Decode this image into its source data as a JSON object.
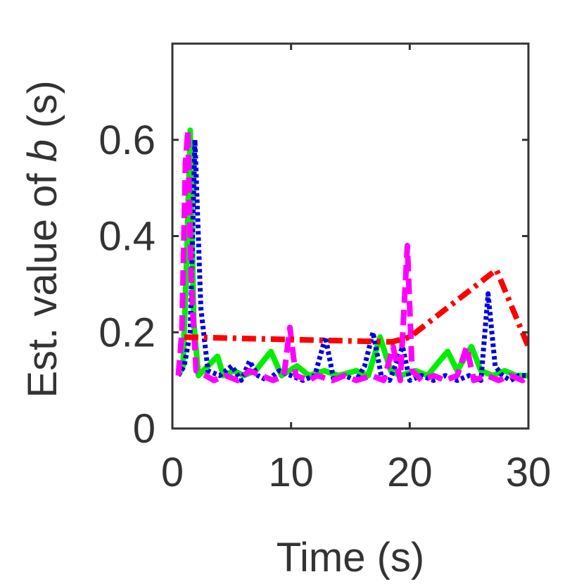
{
  "chart_data": {
    "type": "line",
    "xlabel": "Time (s)",
    "ylabel_prefix": "Est. value of ",
    "ylabel_var": "b",
    "ylabel_suffix": " (s)",
    "xlim": [
      0,
      30
    ],
    "ylim": [
      0,
      0.8
    ],
    "xticks": [
      0,
      10,
      20,
      30
    ],
    "yticks": [
      0,
      0.2,
      0.4,
      0.6
    ],
    "xtick_labels": [
      "0",
      "10",
      "20",
      "30"
    ],
    "ytick_labels": [
      "0",
      "0.2",
      "0.4",
      "0.6"
    ],
    "grid": false,
    "series": [
      {
        "color": "#00ee00",
        "style": "solid",
        "points": [
          [
            0.5,
            0.11
          ],
          [
            0.9,
            0.13
          ],
          [
            1.2,
            0.35
          ],
          [
            1.5,
            0.62
          ],
          [
            1.8,
            0.22
          ],
          [
            2.2,
            0.11
          ],
          [
            3.0,
            0.13
          ],
          [
            3.8,
            0.15
          ],
          [
            4.3,
            0.11
          ],
          [
            5.2,
            0.12
          ],
          [
            6.0,
            0.11
          ],
          [
            7.0,
            0.12
          ],
          [
            8.3,
            0.16
          ],
          [
            9.2,
            0.11
          ],
          [
            10.5,
            0.13
          ],
          [
            11.5,
            0.11
          ],
          [
            12.8,
            0.12
          ],
          [
            14.0,
            0.11
          ],
          [
            15.5,
            0.12
          ],
          [
            16.5,
            0.11
          ],
          [
            17.5,
            0.19
          ],
          [
            18.4,
            0.12
          ],
          [
            19.2,
            0.11
          ],
          [
            20.5,
            0.12
          ],
          [
            21.5,
            0.11
          ],
          [
            22.5,
            0.14
          ],
          [
            23.2,
            0.16
          ],
          [
            24.0,
            0.12
          ],
          [
            25.2,
            0.17
          ],
          [
            26.0,
            0.12
          ],
          [
            27.0,
            0.11
          ],
          [
            28.0,
            0.12
          ],
          [
            29.0,
            0.11
          ],
          [
            30.0,
            0.11
          ]
        ]
      },
      {
        "color": "#0000dd",
        "style": "dotted",
        "points": [
          [
            0.5,
            0.11
          ],
          [
            1.0,
            0.13
          ],
          [
            1.5,
            0.2
          ],
          [
            1.9,
            0.6
          ],
          [
            2.4,
            0.25
          ],
          [
            3.0,
            0.12
          ],
          [
            4.0,
            0.11
          ],
          [
            5.0,
            0.13
          ],
          [
            5.8,
            0.1
          ],
          [
            6.5,
            0.14
          ],
          [
            7.2,
            0.11
          ],
          [
            8.0,
            0.1
          ],
          [
            9.0,
            0.12
          ],
          [
            10.0,
            0.11
          ],
          [
            11.0,
            0.1
          ],
          [
            12.0,
            0.11
          ],
          [
            12.9,
            0.19
          ],
          [
            13.6,
            0.1
          ],
          [
            14.5,
            0.11
          ],
          [
            15.5,
            0.1
          ],
          [
            16.2,
            0.13
          ],
          [
            16.9,
            0.2
          ],
          [
            17.6,
            0.11
          ],
          [
            18.3,
            0.1
          ],
          [
            19.4,
            0.17
          ],
          [
            20.0,
            0.1
          ],
          [
            21.0,
            0.11
          ],
          [
            22.0,
            0.1
          ],
          [
            23.0,
            0.11
          ],
          [
            24.0,
            0.1
          ],
          [
            25.0,
            0.11
          ],
          [
            26.0,
            0.1
          ],
          [
            26.6,
            0.28
          ],
          [
            27.2,
            0.13
          ],
          [
            27.8,
            0.11
          ],
          [
            28.5,
            0.1
          ],
          [
            29.2,
            0.11
          ],
          [
            30.0,
            0.11
          ]
        ]
      },
      {
        "color": "#ff00ff",
        "style": "dashed",
        "points": [
          [
            0.5,
            0.11
          ],
          [
            0.8,
            0.2
          ],
          [
            1.1,
            0.55
          ],
          [
            1.3,
            0.62
          ],
          [
            1.6,
            0.3
          ],
          [
            2.0,
            0.12
          ],
          [
            2.8,
            0.11
          ],
          [
            3.5,
            0.1
          ],
          [
            4.5,
            0.11
          ],
          [
            5.5,
            0.1
          ],
          [
            6.5,
            0.12
          ],
          [
            7.5,
            0.11
          ],
          [
            8.5,
            0.1
          ],
          [
            9.4,
            0.11
          ],
          [
            9.9,
            0.21
          ],
          [
            10.4,
            0.11
          ],
          [
            11.5,
            0.1
          ],
          [
            12.2,
            0.11
          ],
          [
            13.5,
            0.1
          ],
          [
            14.5,
            0.11
          ],
          [
            15.5,
            0.1
          ],
          [
            16.8,
            0.11
          ],
          [
            17.8,
            0.1
          ],
          [
            18.6,
            0.17
          ],
          [
            19.2,
            0.1
          ],
          [
            19.8,
            0.38
          ],
          [
            20.2,
            0.12
          ],
          [
            21.0,
            0.1
          ],
          [
            22.0,
            0.11
          ],
          [
            23.0,
            0.1
          ],
          [
            24.0,
            0.11
          ],
          [
            24.8,
            0.17
          ],
          [
            25.4,
            0.1
          ],
          [
            26.5,
            0.11
          ],
          [
            27.5,
            0.1
          ],
          [
            28.5,
            0.11
          ],
          [
            29.5,
            0.1
          ],
          [
            30.0,
            0.11
          ]
        ]
      },
      {
        "color": "#ff0000",
        "style": "dashdot",
        "points": [
          [
            1.0,
            0.19
          ],
          [
            18.5,
            0.18
          ],
          [
            20.0,
            0.19
          ],
          [
            27.3,
            0.33
          ],
          [
            30.0,
            0.17
          ]
        ]
      }
    ]
  }
}
